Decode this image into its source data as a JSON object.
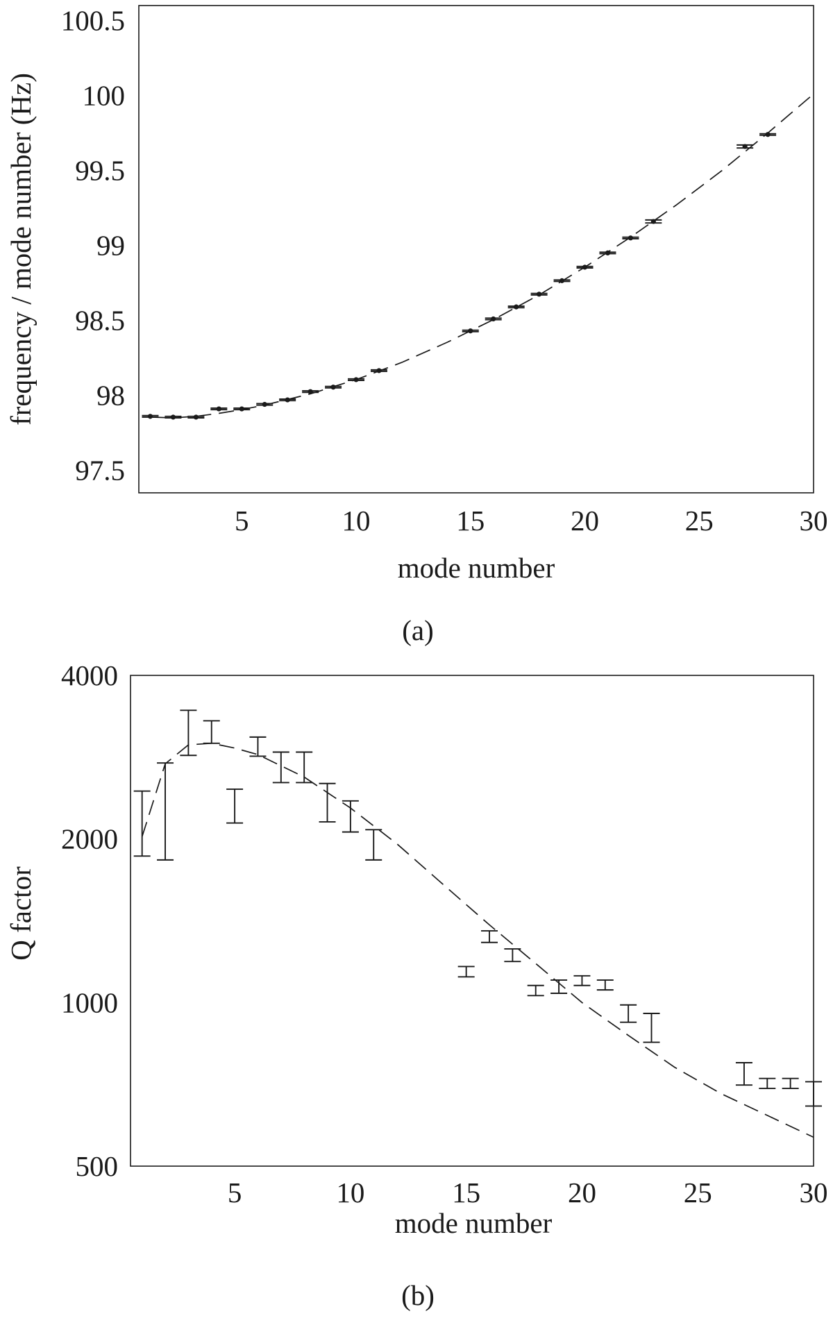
{
  "chart_data": [
    {
      "panel": "(a)",
      "type": "scatter",
      "xlabel": "mode number",
      "ylabel": "frequency / mode number (Hz)",
      "xlim": [
        0.5,
        30
      ],
      "ylim": [
        97.35,
        100.6
      ],
      "xticks": [
        5,
        10,
        15,
        20,
        25,
        30
      ],
      "yticks": [
        97.5,
        98,
        98.5,
        99,
        99.5,
        100,
        100.5
      ],
      "ytick_labels": [
        "97.5",
        "98",
        "98.5",
        "99",
        "99.5",
        "100",
        "100.5"
      ],
      "grid": false,
      "points": [
        {
          "x": 1,
          "y": 97.86,
          "err": 0.005
        },
        {
          "x": 2,
          "y": 97.855,
          "err": 0.005
        },
        {
          "x": 3,
          "y": 97.855,
          "err": 0.005
        },
        {
          "x": 4,
          "y": 97.91,
          "err": 0.005
        },
        {
          "x": 5,
          "y": 97.91,
          "err": 0.005
        },
        {
          "x": 6,
          "y": 97.94,
          "err": 0.005
        },
        {
          "x": 7,
          "y": 97.97,
          "err": 0.005
        },
        {
          "x": 8,
          "y": 98.025,
          "err": 0.005
        },
        {
          "x": 9,
          "y": 98.055,
          "err": 0.005
        },
        {
          "x": 10,
          "y": 98.105,
          "err": 0.005
        },
        {
          "x": 11,
          "y": 98.165,
          "err": 0.005
        },
        {
          "x": 15,
          "y": 98.43,
          "err": 0.005
        },
        {
          "x": 16,
          "y": 98.51,
          "err": 0.005
        },
        {
          "x": 17,
          "y": 98.59,
          "err": 0.005
        },
        {
          "x": 18,
          "y": 98.675,
          "err": 0.005
        },
        {
          "x": 19,
          "y": 98.765,
          "err": 0.005
        },
        {
          "x": 20,
          "y": 98.855,
          "err": 0.005
        },
        {
          "x": 21,
          "y": 98.95,
          "err": 0.005
        },
        {
          "x": 22,
          "y": 99.05,
          "err": 0.005
        },
        {
          "x": 23,
          "y": 99.16,
          "err": 0.01
        },
        {
          "x": 27,
          "y": 99.66,
          "err": 0.01
        },
        {
          "x": 28,
          "y": 99.74,
          "err": 0.005
        }
      ],
      "fit_curve": {
        "style": "dashed",
        "x": [
          1,
          2,
          3,
          4,
          5,
          6,
          8,
          10,
          12,
          14,
          16,
          18,
          20,
          22,
          24,
          26,
          28,
          30
        ],
        "y": [
          97.855,
          97.85,
          97.86,
          97.88,
          97.905,
          97.935,
          98.01,
          98.105,
          98.22,
          98.355,
          98.505,
          98.67,
          98.855,
          99.055,
          99.27,
          99.5,
          99.75,
          100.01
        ]
      }
    },
    {
      "panel": "(b)",
      "type": "scatter",
      "xlabel": "mode number",
      "ylabel": "Q factor",
      "yscale": "log",
      "xlim": [
        0.5,
        30
      ],
      "ylim": [
        500,
        4000
      ],
      "xticks": [
        5,
        10,
        15,
        20,
        25,
        30
      ],
      "yticks": [
        500,
        1000,
        2000,
        4000
      ],
      "ytick_labels": [
        "500",
        "1000",
        "2000",
        "4000"
      ],
      "grid": false,
      "error_bars": [
        {
          "x": 1,
          "low": 1860,
          "high": 2450
        },
        {
          "x": 2,
          "low": 1830,
          "high": 2760
        },
        {
          "x": 3,
          "low": 2850,
          "high": 3450
        },
        {
          "x": 4,
          "low": 3000,
          "high": 3300
        },
        {
          "x": 5,
          "low": 2140,
          "high": 2470
        },
        {
          "x": 6,
          "low": 2840,
          "high": 3080
        },
        {
          "x": 7,
          "low": 2540,
          "high": 2890
        },
        {
          "x": 8,
          "low": 2540,
          "high": 2890
        },
        {
          "x": 9,
          "low": 2150,
          "high": 2530
        },
        {
          "x": 10,
          "low": 2060,
          "high": 2350
        },
        {
          "x": 11,
          "low": 1830,
          "high": 2080
        },
        {
          "x": 15,
          "low": 1115,
          "high": 1165
        },
        {
          "x": 16,
          "low": 1290,
          "high": 1355
        },
        {
          "x": 17,
          "low": 1190,
          "high": 1255
        },
        {
          "x": 18,
          "low": 1030,
          "high": 1075
        },
        {
          "x": 19,
          "low": 1040,
          "high": 1100
        },
        {
          "x": 20,
          "low": 1075,
          "high": 1120
        },
        {
          "x": 21,
          "low": 1055,
          "high": 1100
        },
        {
          "x": 22,
          "low": 920,
          "high": 990
        },
        {
          "x": 23,
          "low": 845,
          "high": 955
        },
        {
          "x": 27,
          "low": 705,
          "high": 775
        },
        {
          "x": 28,
          "low": 695,
          "high": 725
        },
        {
          "x": 29,
          "low": 695,
          "high": 725
        },
        {
          "x": 30,
          "low": 645,
          "high": 715
        }
      ],
      "fit_curve": {
        "style": "dashed",
        "x": [
          1,
          2,
          3,
          4,
          5,
          6,
          8,
          10,
          12,
          14,
          16,
          18,
          20,
          22,
          24,
          26,
          28,
          30
        ],
        "y": [
          2020,
          2750,
          2980,
          3000,
          2940,
          2860,
          2600,
          2280,
          1960,
          1650,
          1390,
          1180,
          1000,
          870,
          760,
          680,
          620,
          565
        ]
      }
    }
  ],
  "captions": [
    "(a)",
    "(b)"
  ]
}
